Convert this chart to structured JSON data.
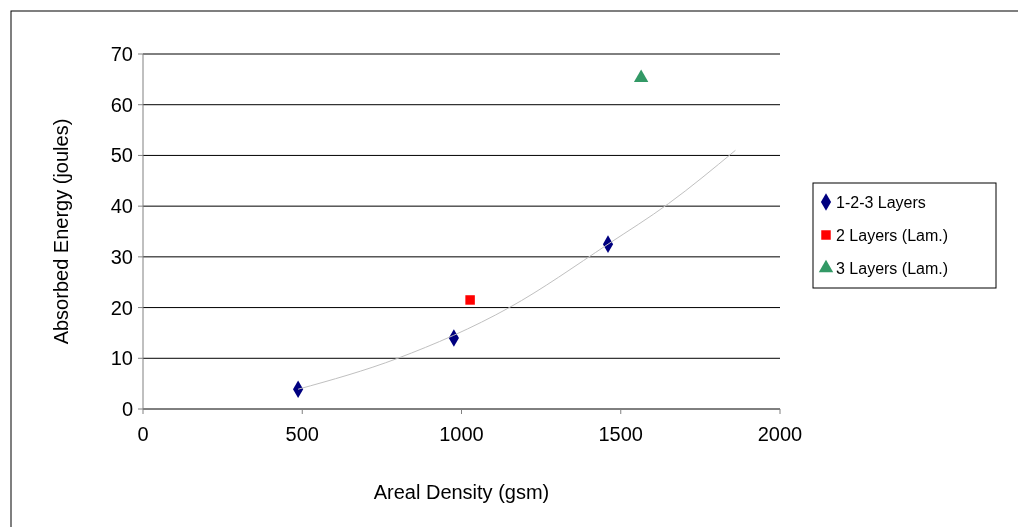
{
  "chart_data": {
    "type": "scatter",
    "xlabel": "Areal Density (gsm)",
    "ylabel": "Absorbed Energy (joules)",
    "xlim": [
      0,
      2000
    ],
    "xticks": [
      0,
      500,
      1000,
      1500,
      2000
    ],
    "ylim": [
      0,
      70
    ],
    "yticks": [
      0,
      10,
      20,
      30,
      40,
      50,
      60,
      70
    ],
    "grid": "y",
    "legend": "right",
    "series": [
      {
        "name": "1-2-3 Layers",
        "color": "#000080",
        "marker": "diamond",
        "x": [
          487,
          976,
          1460
        ],
        "values": [
          3.9,
          14.0,
          32.5
        ]
      },
      {
        "name": "2 Layers (Lam.)",
        "color": "#ff0000",
        "marker": "square",
        "x": [
          1027
        ],
        "values": [
          21.5
        ]
      },
      {
        "name": "3 Layers (Lam.)",
        "color": "#339966",
        "marker": "triangle",
        "x": [
          1564
        ],
        "values": [
          65.3
        ]
      },
      {
        "type": "line",
        "color": "#c0c0c0",
        "marker": "none",
        "x": [
          487,
          800,
          1150,
          1460,
          1650,
          1860
        ],
        "values": [
          3.9,
          10.0,
          20.0,
          32.5,
          40.5,
          51.0
        ]
      }
    ]
  }
}
